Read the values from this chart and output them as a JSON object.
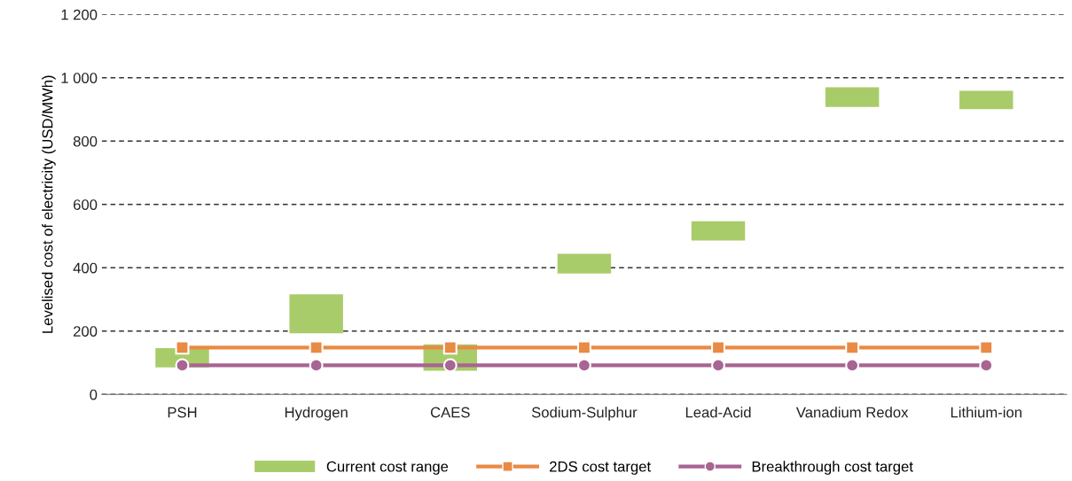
{
  "chart_data": {
    "type": "bar",
    "ylabel": "Levelised cost of electricity (USD/MWh)",
    "categories": [
      "PSH",
      "Hydrogen",
      "CAES",
      "Sodium-Sulphur",
      "Lead-Acid",
      "Vanadium Redox",
      "Lithium-ion"
    ],
    "series": [
      {
        "name": "Current cost range",
        "color": "#a9cc6a",
        "base": [
          85,
          193,
          75,
          382,
          486,
          908,
          901
        ],
        "values": [
          61,
          123,
          83,
          62,
          61,
          62,
          58
        ]
      },
      {
        "name": "2DS cost target",
        "type": "line",
        "color": "#e98a45",
        "marker": "square",
        "values": [
          148,
          148,
          148,
          148,
          148,
          148,
          148
        ]
      },
      {
        "name": "Breakthrough cost target",
        "type": "line",
        "color": "#a86493",
        "marker": "circle",
        "values": [
          92,
          92,
          92,
          92,
          92,
          92,
          92
        ]
      }
    ],
    "ylim": [
      0,
      1200
    ],
    "yticks": [
      0,
      200,
      400,
      600,
      800,
      {
        "value": 1000,
        "label": "1 000"
      },
      {
        "value": 1200,
        "label": "1 200"
      }
    ],
    "grid": "y",
    "legend": "bottom"
  }
}
